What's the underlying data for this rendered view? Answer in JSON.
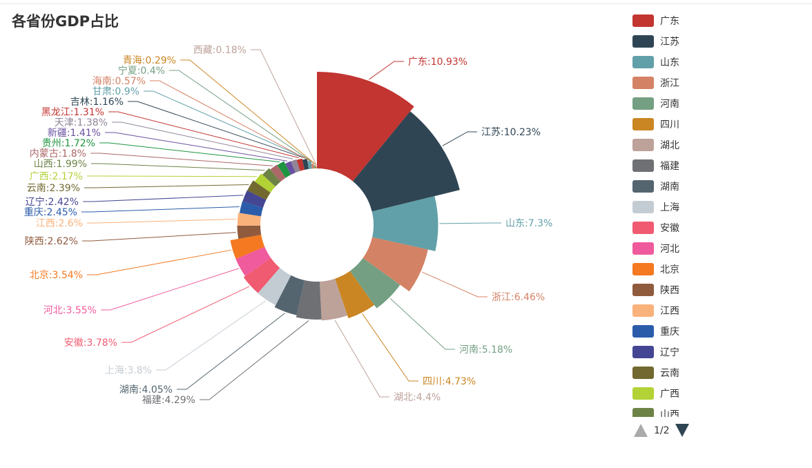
{
  "title": "各省份GDP占比",
  "chart_data": {
    "type": "pie",
    "variant": "nightingale-rose-ring",
    "title": "各省份GDP占比",
    "legend_position": "right",
    "series": [
      {
        "name": "广东",
        "value": 10.93,
        "color": "#c23531"
      },
      {
        "name": "江苏",
        "value": 10.23,
        "color": "#2f4554"
      },
      {
        "name": "山东",
        "value": 7.3,
        "color": "#61a0a8"
      },
      {
        "name": "浙江",
        "value": 6.46,
        "color": "#d48265"
      },
      {
        "name": "河南",
        "value": 5.18,
        "color": "#749f83"
      },
      {
        "name": "四川",
        "value": 4.73,
        "color": "#ca8622"
      },
      {
        "name": "湖北",
        "value": 4.4,
        "color": "#bda29a"
      },
      {
        "name": "福建",
        "value": 4.29,
        "color": "#6e7074"
      },
      {
        "name": "湖南",
        "value": 4.05,
        "color": "#546570"
      },
      {
        "name": "上海",
        "value": 3.8,
        "color": "#c4ccd3"
      },
      {
        "name": "安徽",
        "value": 3.78,
        "color": "#f05b72"
      },
      {
        "name": "河北",
        "value": 3.55,
        "color": "#ef5b9c"
      },
      {
        "name": "北京",
        "value": 3.54,
        "color": "#f47920"
      },
      {
        "name": "陕西",
        "value": 2.62,
        "color": "#905a3d"
      },
      {
        "name": "江西",
        "value": 2.6,
        "color": "#fab27b"
      },
      {
        "name": "重庆",
        "value": 2.45,
        "color": "#2a5caa"
      },
      {
        "name": "辽宁",
        "value": 2.42,
        "color": "#444693"
      },
      {
        "name": "云南",
        "value": 2.39,
        "color": "#726930"
      },
      {
        "name": "广西",
        "value": 2.17,
        "color": "#b2d235"
      },
      {
        "name": "山西",
        "value": 1.99,
        "color": "#6d8346"
      },
      {
        "name": "内蒙古",
        "value": 1.8,
        "color": "#ac6767"
      },
      {
        "name": "贵州",
        "value": 1.72,
        "color": "#1d953f"
      },
      {
        "name": "新疆",
        "value": 1.41,
        "color": "#6950a1"
      },
      {
        "name": "天津",
        "value": 1.38,
        "color": "#918597"
      },
      {
        "name": "黑龙江",
        "value": 1.31,
        "color": "#c23531"
      },
      {
        "name": "吉林",
        "value": 1.16,
        "color": "#2f4554"
      },
      {
        "name": "甘肃",
        "value": 0.9,
        "color": "#61a0a8"
      },
      {
        "name": "海南",
        "value": 0.57,
        "color": "#d48265"
      },
      {
        "name": "宁夏",
        "value": 0.4,
        "color": "#749f83"
      },
      {
        "name": "青海",
        "value": 0.29,
        "color": "#ca8622"
      },
      {
        "name": "西藏",
        "value": 0.18,
        "color": "#bda29a"
      }
    ]
  },
  "legend": {
    "items": [
      "广东",
      "江苏",
      "山东",
      "浙江",
      "河南",
      "四川",
      "湖北",
      "福建",
      "湖南",
      "上海",
      "安徽",
      "河北",
      "北京",
      "陕西",
      "江西",
      "重庆",
      "辽宁",
      "云南",
      "广西",
      "山西"
    ]
  },
  "pager": {
    "text": "1/2"
  }
}
